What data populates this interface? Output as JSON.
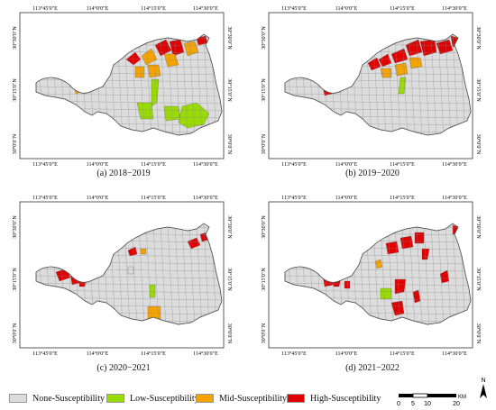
{
  "panels": [
    {
      "caption": "(a) 2018−2019",
      "key": "a"
    },
    {
      "caption": "(b) 2019−2020",
      "key": "b"
    },
    {
      "caption": "(c) 2020−2021",
      "key": "c"
    },
    {
      "caption": "(d) 2021−2022",
      "key": "d"
    }
  ],
  "axis_labels": {
    "top": [
      "113°45′0″E",
      "114°0′0″E",
      "114°15′0″E",
      "114°30′0″E"
    ],
    "bottom": [
      "113°45′0″E",
      "114°0′0″E",
      "114°15′0″E",
      "114°30′0″E"
    ],
    "left": [
      "30°30′0″N",
      "30°15′0″N",
      "30°0′0″N"
    ],
    "right": [
      "30°30′0″N",
      "30°15′0″N",
      "30°0′0″N"
    ]
  },
  "legend": [
    {
      "label": "None-Susceptibility",
      "color": "#dcdcdc"
    },
    {
      "label": "Low-Susceptibility",
      "color": "#99dd00"
    },
    {
      "label": "Mid-Susceptibility",
      "color": "#f5a300"
    },
    {
      "label": "High-Susceptibility",
      "color": "#e00000"
    }
  ],
  "scale": {
    "ticks": [
      "0",
      "5",
      "10",
      "20"
    ],
    "unit": "KM"
  },
  "north_label": "N"
}
